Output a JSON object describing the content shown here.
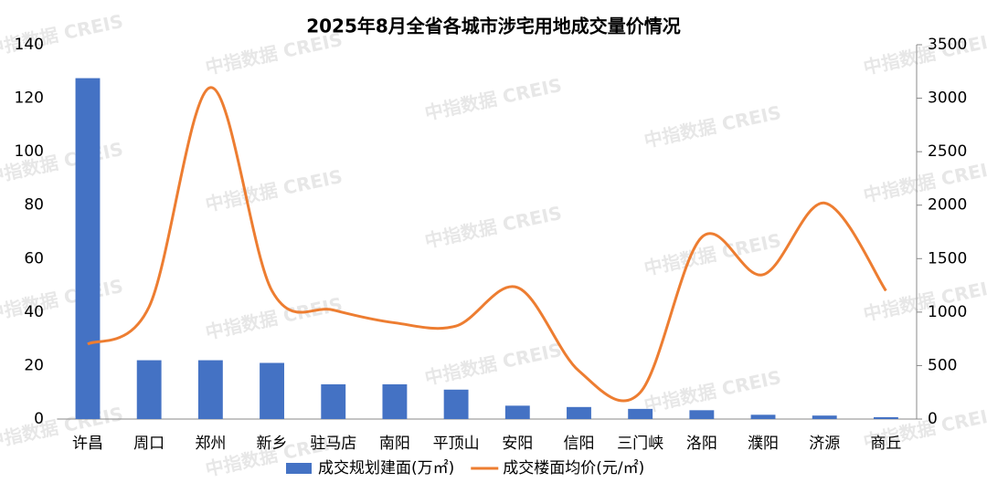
{
  "chart_data": {
    "type": "bar-line",
    "title": "2025年8月全省各城市涉宅用地成交量价情况",
    "watermark": "中指数据 CREIS",
    "categories": [
      "许昌",
      "周口",
      "郑州",
      "新乡",
      "驻马店",
      "南阳",
      "平顶山",
      "安阳",
      "信阳",
      "三门峡",
      "洛阳",
      "濮阳",
      "济源",
      "商丘"
    ],
    "series": [
      {
        "name": "成交规划建面(万㎡)",
        "type": "bar",
        "color": "#4472c4",
        "values": [
          127.5,
          22,
          22,
          21,
          13,
          13,
          11,
          5,
          4.5,
          3.8,
          3.3,
          1.6,
          1.3,
          0.7
        ]
      },
      {
        "name": "成交楼面均价(元/㎡)",
        "type": "line",
        "axis": "y2",
        "color": "#ed7d31",
        "values": [
          700,
          1050,
          3100,
          1200,
          1020,
          900,
          870,
          1230,
          450,
          250,
          1700,
          1350,
          2020,
          1200
        ]
      }
    ],
    "ylim": [
      0,
      140
    ],
    "yticks": [
      0,
      20,
      40,
      60,
      80,
      100,
      120,
      140
    ],
    "y2lim": [
      0,
      3500
    ],
    "y2ticks": [
      0,
      500,
      1000,
      1500,
      2000,
      2500,
      3000,
      3500
    ],
    "grid": false,
    "legend": "bottom"
  }
}
